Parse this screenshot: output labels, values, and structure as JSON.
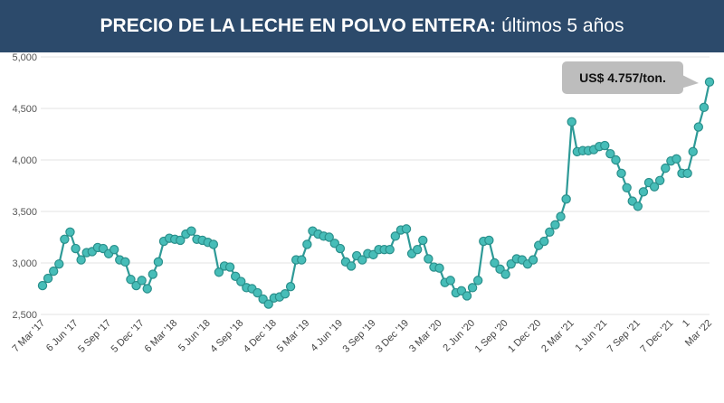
{
  "header": {
    "title_bold": "PRECIO DE LA LECHE EN POLVO ENTERA:",
    "title_light": "últimos 5 años"
  },
  "colors": {
    "header_bg": "#2c4a6b",
    "line": "#2e9a97",
    "marker_fill": "#47bdb8",
    "marker_stroke": "#2a8f8b",
    "callout_bg": "#bdbdbd",
    "grid": "#e3e3e3"
  },
  "callout": {
    "text": "US$ 4.757/ton."
  },
  "chart_data": {
    "type": "line",
    "title": "PRECIO DE LA LECHE EN POLVO ENTERA: últimos 5 años",
    "xlabel": "",
    "ylabel": "",
    "ylim": [
      2500,
      5000
    ],
    "yticks": [
      2500,
      3000,
      3500,
      4000,
      4500,
      5000
    ],
    "ytick_labels": [
      "2,500",
      "3,000",
      "3,500",
      "4,000",
      "4,500",
      "5,000"
    ],
    "grid": true,
    "legend": "none",
    "x_tick_labels": [
      {
        "label": "7 Mar '17",
        "index": 0
      },
      {
        "label": "6 Jun '17",
        "index": 6
      },
      {
        "label": "5 Sep '17",
        "index": 12
      },
      {
        "label": "5 Dec '17",
        "index": 18
      },
      {
        "label": "6 Mar '18",
        "index": 24
      },
      {
        "label": "5 Jun '18",
        "index": 30
      },
      {
        "label": "4 Sep '18",
        "index": 36
      },
      {
        "label": "4 Dec '18",
        "index": 42
      },
      {
        "label": "5 Mar '19",
        "index": 48
      },
      {
        "label": "4 Jun '19",
        "index": 54
      },
      {
        "label": "3 Sep '19",
        "index": 60
      },
      {
        "label": "3 Dec '19",
        "index": 66
      },
      {
        "label": "3 Mar '20",
        "index": 72
      },
      {
        "label": "2 Jun '20",
        "index": 78
      },
      {
        "label": "1 Sep '20",
        "index": 84
      },
      {
        "label": "1 Dec '20",
        "index": 90
      },
      {
        "label": "2 Mar '21",
        "index": 96
      },
      {
        "label": "1 Jun '21",
        "index": 102
      },
      {
        "label": "7 Sep '21",
        "index": 108
      },
      {
        "label": "7 Dec '21",
        "index": 114
      },
      {
        "label": "1",
        "index": 117
      },
      {
        "label": "Mar '22",
        "index": 121
      }
    ],
    "series": [
      {
        "values": [
          2780,
          2850,
          2920,
          2990,
          3230,
          3300,
          3140,
          3030,
          3100,
          3110,
          3150,
          3140,
          3090,
          3130,
          3030,
          3010,
          2840,
          2780,
          2830,
          2750,
          2890,
          3010,
          3210,
          3240,
          3230,
          3220,
          3280,
          3310,
          3230,
          3220,
          3200,
          3180,
          2910,
          2970,
          2960,
          2870,
          2820,
          2760,
          2750,
          2710,
          2650,
          2600,
          2660,
          2670,
          2700,
          2770,
          3030,
          3030,
          3180,
          3310,
          3280,
          3260,
          3250,
          3190,
          3140,
          3010,
          2970,
          3070,
          3030,
          3090,
          3080,
          3130,
          3130,
          3130,
          3260,
          3320,
          3330,
          3090,
          3130,
          3220,
          3040,
          2960,
          2950,
          2810,
          2830,
          2710,
          2730,
          2680,
          2760,
          2830,
          3210,
          3220,
          3000,
          2940,
          2890,
          2990,
          3040,
          3030,
          2990,
          3030,
          3170,
          3210,
          3300,
          3370,
          3450,
          3620,
          4370,
          4080,
          4090,
          4090,
          4100,
          4130,
          4140,
          4060,
          4000,
          3870,
          3730,
          3600,
          3550,
          3690,
          3780,
          3740,
          3800,
          3920,
          3990,
          4010,
          3870,
          3870,
          4080,
          4320,
          4510,
          4757
        ]
      }
    ]
  }
}
